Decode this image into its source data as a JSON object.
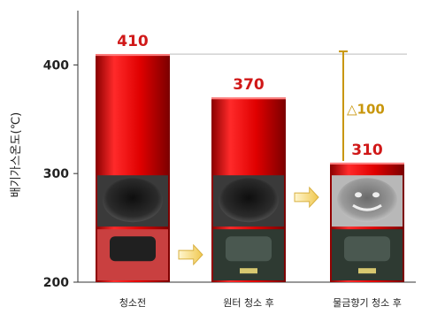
{
  "chart_data": {
    "type": "bar",
    "categories": [
      "청소전",
      "원터 청소 후",
      "물금향기 청소 후"
    ],
    "values": [
      410,
      370,
      310
    ],
    "value_labels": [
      "410",
      "370",
      "310"
    ],
    "ylabel": "배기가스온도(℃)",
    "ylim": [
      200,
      450
    ],
    "yticks": [
      200,
      300,
      400
    ],
    "grid": false,
    "legend": "none",
    "annotations": [
      {
        "text": "△100",
        "from_value": 410,
        "to_value": 310,
        "category_index": 2
      }
    ],
    "colors": {
      "bar_top": "#ff2020",
      "bar_mid": "#cc0000",
      "bar_dark": "#7a0000",
      "value_label": "#d01818",
      "annotation": "#c8960c",
      "tick_text": "#222222",
      "axis": "#333333",
      "ref_line": "#bbbbbb",
      "arrow_fill": "#f3dc83"
    }
  }
}
